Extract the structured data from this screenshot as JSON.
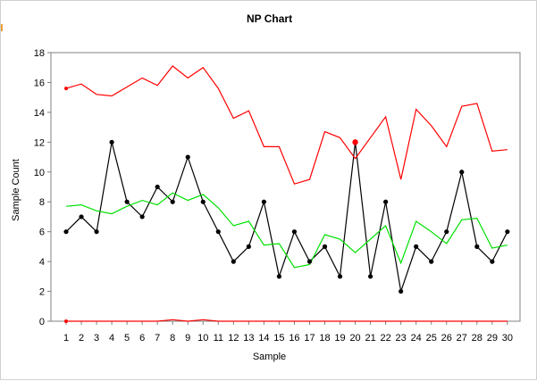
{
  "chart_data": {
    "type": "line",
    "title": "NP Chart",
    "xlabel": "Sample",
    "ylabel": "Sample Count",
    "x": [
      1,
      2,
      3,
      4,
      5,
      6,
      7,
      8,
      9,
      10,
      11,
      12,
      13,
      14,
      15,
      16,
      17,
      18,
      19,
      20,
      21,
      22,
      23,
      24,
      25,
      26,
      27,
      28,
      29,
      30
    ],
    "xlim": [
      1,
      30
    ],
    "ylim": [
      0,
      18
    ],
    "yticks": [
      0,
      2,
      4,
      6,
      8,
      10,
      12,
      14,
      16,
      18
    ],
    "grid": false,
    "legend": "none",
    "series": [
      {
        "role": "sample_count",
        "color": "#000000",
        "markers": true,
        "values": [
          6,
          7,
          6,
          12,
          8,
          7,
          9,
          8,
          11,
          8,
          6,
          4,
          5,
          8,
          3,
          6,
          4,
          5,
          3,
          12,
          3,
          8,
          2,
          5,
          4,
          6,
          10,
          5,
          4,
          6
        ]
      },
      {
        "role": "center_line",
        "color": "#00e000",
        "markers": false,
        "values": [
          7.7,
          7.8,
          7.4,
          7.2,
          7.7,
          8.1,
          7.8,
          8.6,
          8.1,
          8.5,
          7.6,
          6.4,
          6.7,
          5.1,
          5.2,
          3.6,
          3.8,
          5.8,
          5.5,
          4.6,
          5.5,
          6.4,
          3.9,
          6.7,
          6.0,
          5.2,
          6.8,
          6.9,
          4.9,
          5.1
        ]
      },
      {
        "role": "upper_control_limit",
        "color": "#ff0000",
        "markers": false,
        "values": [
          15.6,
          15.9,
          15.2,
          15.1,
          15.7,
          16.3,
          15.8,
          17.1,
          16.3,
          17.0,
          15.6,
          13.6,
          14.1,
          11.7,
          11.7,
          9.2,
          9.5,
          12.7,
          12.3,
          10.9,
          12.3,
          13.7,
          9.5,
          14.2,
          13.1,
          11.7,
          14.4,
          14.6,
          11.4,
          11.5
        ]
      },
      {
        "role": "lower_control_limit",
        "color": "#ff0000",
        "markers": false,
        "values": [
          0,
          0,
          0,
          0,
          0,
          0,
          0,
          0.1,
          0,
          0.1,
          0,
          0,
          0,
          0,
          0,
          0,
          0,
          0,
          0,
          0,
          0,
          0,
          0,
          0,
          0,
          0,
          0,
          0,
          0,
          0
        ]
      }
    ],
    "highlighted_points": [
      {
        "x": 1,
        "y": 15.6,
        "color": "#ff0000"
      },
      {
        "x": 1,
        "y": 0,
        "color": "#ff0000"
      },
      {
        "x": 20,
        "y": 12,
        "color": "#ff0000"
      }
    ]
  }
}
